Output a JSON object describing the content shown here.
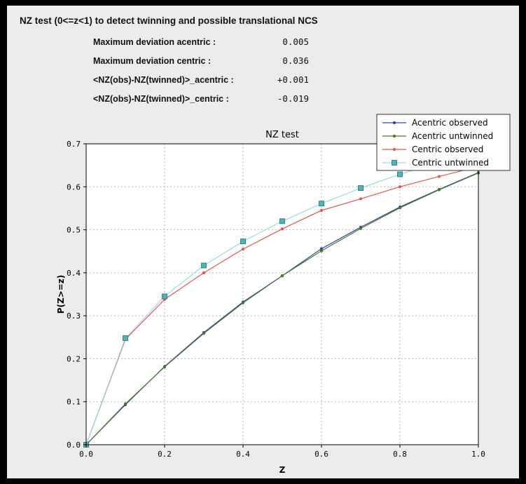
{
  "header": {
    "title": "NZ test (0<=z<1) to detect twinning and possible translational NCS"
  },
  "stats": [
    {
      "label": "Maximum deviation acentric :",
      "value": "0.005"
    },
    {
      "label": "Maximum deviation centric :",
      "value": "0.036"
    },
    {
      "label": "<NZ(obs)-NZ(twinned)>_acentric :",
      "value": "+0.001"
    },
    {
      "label": "<NZ(obs)-NZ(twinned)>_centric :",
      "value": "-0.019"
    }
  ],
  "chart_data": {
    "type": "line",
    "title": "NZ test",
    "xlabel": "Z",
    "ylabel": "P(Z>=z)",
    "xlim": [
      0.0,
      1.0
    ],
    "ylim": [
      0.0,
      0.7
    ],
    "xticks": [
      0.0,
      0.2,
      0.4,
      0.6,
      0.8,
      1.0
    ],
    "yticks": [
      0.0,
      0.1,
      0.2,
      0.3,
      0.4,
      0.5,
      0.6,
      0.7
    ],
    "grid": true,
    "grid_style": "dashed",
    "legend_position": "upper right",
    "x": [
      0.0,
      0.1,
      0.2,
      0.3,
      0.4,
      0.5,
      0.6,
      0.7,
      0.8,
      0.9,
      1.0
    ],
    "series": [
      {
        "name": "Acentric observed",
        "color": "#3142ad",
        "marker": "dot",
        "values": [
          0.0,
          0.093,
          0.182,
          0.261,
          0.332,
          0.393,
          0.456,
          0.506,
          0.553,
          0.594,
          0.633
        ]
      },
      {
        "name": "Acentric untwinned",
        "color": "#4a7a20",
        "marker": "dot",
        "values": [
          0.0,
          0.095,
          0.181,
          0.259,
          0.33,
          0.393,
          0.451,
          0.503,
          0.551,
          0.593,
          0.632
        ]
      },
      {
        "name": "Centric observed",
        "color": "#e4564e",
        "marker": "dot",
        "values": [
          0.0,
          0.245,
          0.338,
          0.4,
          0.455,
          0.502,
          0.545,
          0.572,
          0.6,
          0.624,
          0.647
        ]
      },
      {
        "name": "Centric untwinned",
        "color": "#97dbe0",
        "marker": "square",
        "marker_color": "#54b2b6",
        "marker_edge": "#1f6f74",
        "values": [
          0.0,
          0.248,
          0.345,
          0.417,
          0.473,
          0.52,
          0.561,
          0.597,
          0.629,
          0.657,
          0.683
        ]
      }
    ]
  }
}
